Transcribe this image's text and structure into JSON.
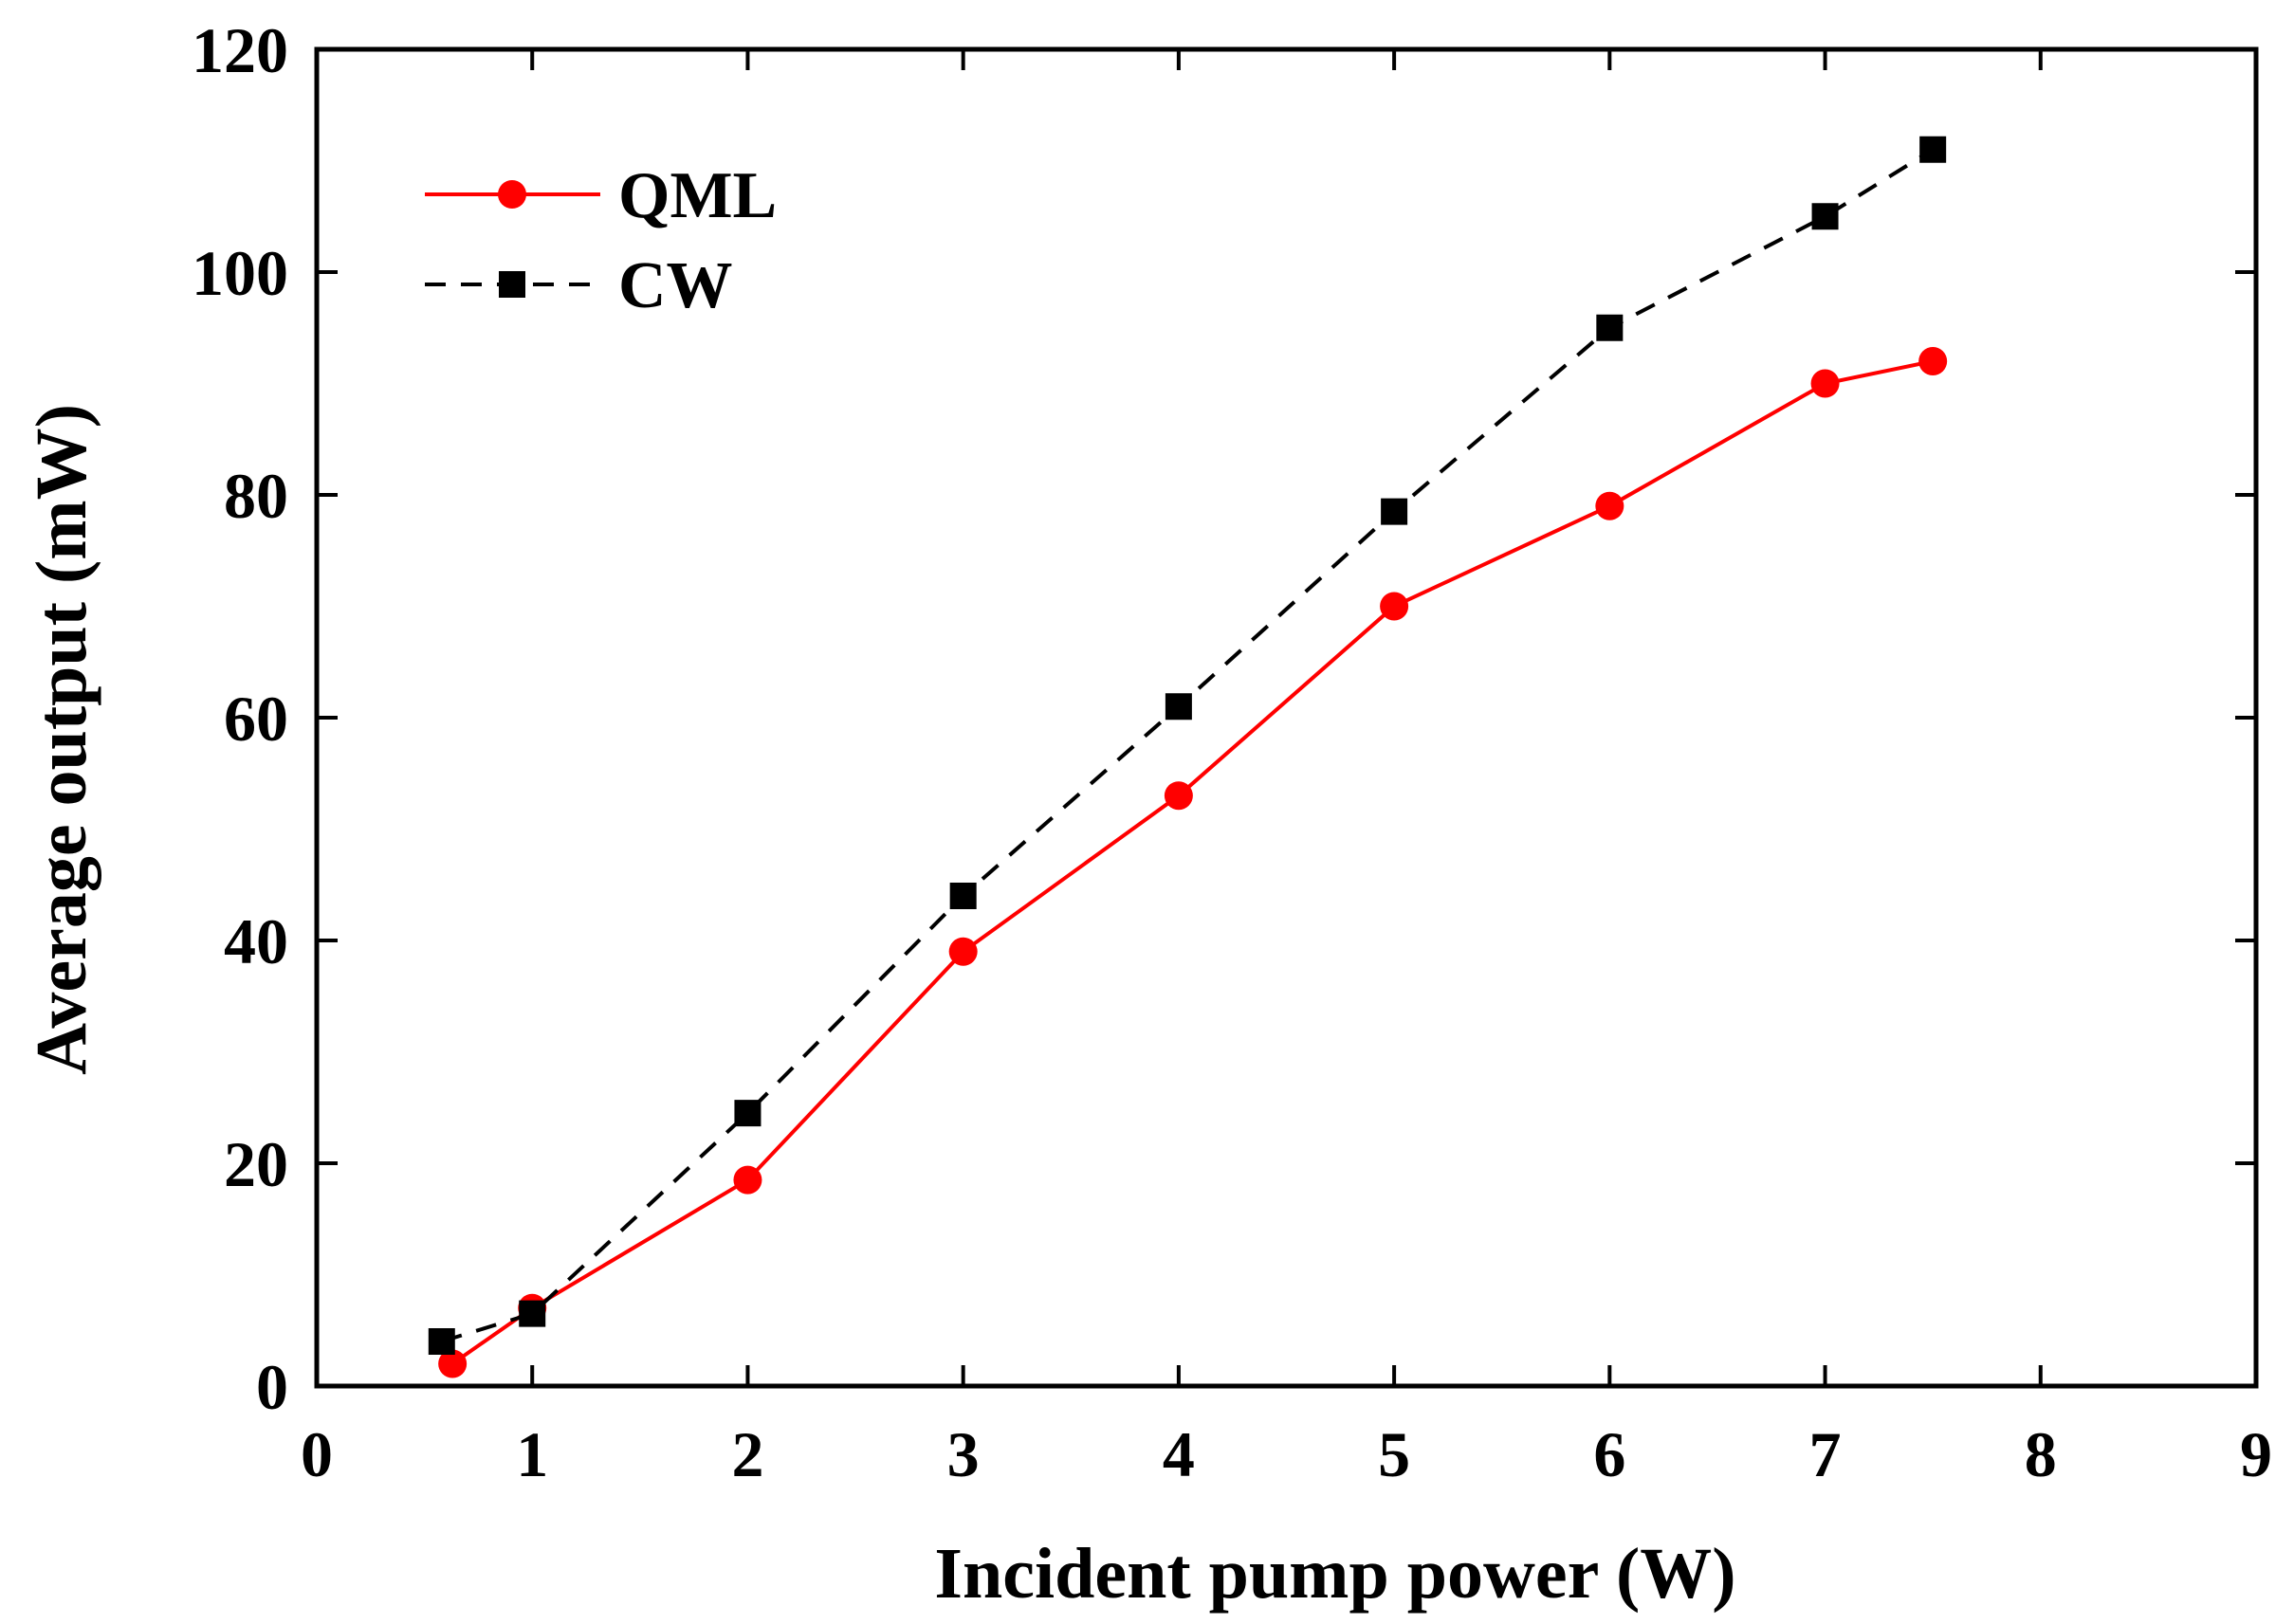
{
  "chart_data": {
    "type": "line",
    "xlabel": "Incident pump power (W)",
    "ylabel": "Average output (mW)",
    "xlim": [
      0,
      9
    ],
    "ylim": [
      0,
      120
    ],
    "x_ticks": [
      "0",
      "1",
      "2",
      "3",
      "4",
      "5",
      "6",
      "7",
      "8",
      "9"
    ],
    "y_ticks": [
      "0",
      "20",
      "40",
      "60",
      "80",
      "100",
      "120"
    ],
    "grid": false,
    "legend_position": "top-left",
    "series": [
      {
        "name": "QML",
        "color": "#ff0000",
        "line_style": "solid",
        "marker": "circle",
        "x": [
          0.63,
          1,
          2,
          3,
          4,
          5,
          6,
          7,
          7.5
        ],
        "y": [
          2,
          7,
          18.5,
          39,
          53,
          70,
          79,
          90,
          92
        ]
      },
      {
        "name": "CW",
        "color": "#000000",
        "line_style": "dashed",
        "marker": "square",
        "x": [
          0.58,
          1,
          2,
          3,
          4,
          5,
          6,
          7,
          7.5
        ],
        "y": [
          4,
          6.5,
          24.5,
          44,
          61,
          78.5,
          95,
          105,
          111
        ]
      }
    ]
  }
}
